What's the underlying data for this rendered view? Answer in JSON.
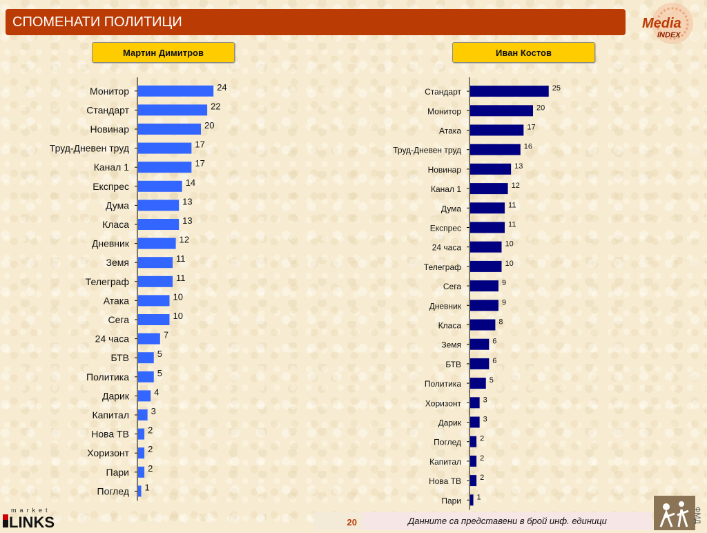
{
  "header": {
    "title": "СПОМЕНАТИ ПОЛИТИЦИ"
  },
  "logo": {
    "text_top": "Media",
    "text_bottom": "INDEX"
  },
  "persons": {
    "left": "Мартин Димитров",
    "right": "Иван Костов"
  },
  "chart_data": [
    {
      "type": "bar",
      "orientation": "horizontal",
      "title": "Мартин Димитров",
      "color": "#3366ff",
      "xlim": [
        0,
        26
      ],
      "categories": [
        "Монитор",
        "Стандарт",
        "Новинар",
        "Труд-Дневен труд",
        "Канал 1",
        "Експрес",
        "Дума",
        "Класа",
        "Дневник",
        "Земя",
        "Телеграф",
        "Атака",
        "Сега",
        "24 часа",
        "БТВ",
        "Политика",
        "Дарик",
        "Капитал",
        "Нова ТВ",
        "Хоризонт",
        "Пари",
        "Поглед"
      ],
      "values": [
        24,
        22,
        20,
        17,
        17,
        14,
        13,
        13,
        12,
        11,
        11,
        10,
        10,
        7,
        5,
        5,
        4,
        3,
        2,
        2,
        2,
        1
      ]
    },
    {
      "type": "bar",
      "orientation": "horizontal",
      "title": "Иван Костов",
      "color": "#000080",
      "xlim": [
        0,
        26
      ],
      "categories": [
        "Стандарт",
        "Монитор",
        "Атака",
        "Труд-Дневен труд",
        "Новинар",
        "Канал 1",
        "Дума",
        "Експрес",
        "24 часа",
        "Телеграф",
        "Сега",
        "Дневник",
        "Класа",
        "Земя",
        "БТВ",
        "Политика",
        "Хоризонт",
        "Дарик",
        "Поглед",
        "Капитал",
        "Нова ТВ",
        "Пари"
      ],
      "values": [
        25,
        20,
        17,
        16,
        13,
        12,
        11,
        11,
        10,
        10,
        9,
        9,
        8,
        6,
        6,
        5,
        3,
        3,
        2,
        2,
        2,
        1
      ]
    }
  ],
  "footer": {
    "page_number": "20",
    "note": "Данните са представени в брой инф. единици",
    "brand_top": "market",
    "brand_bottom": "LINKS",
    "fmd": "ФМД"
  }
}
